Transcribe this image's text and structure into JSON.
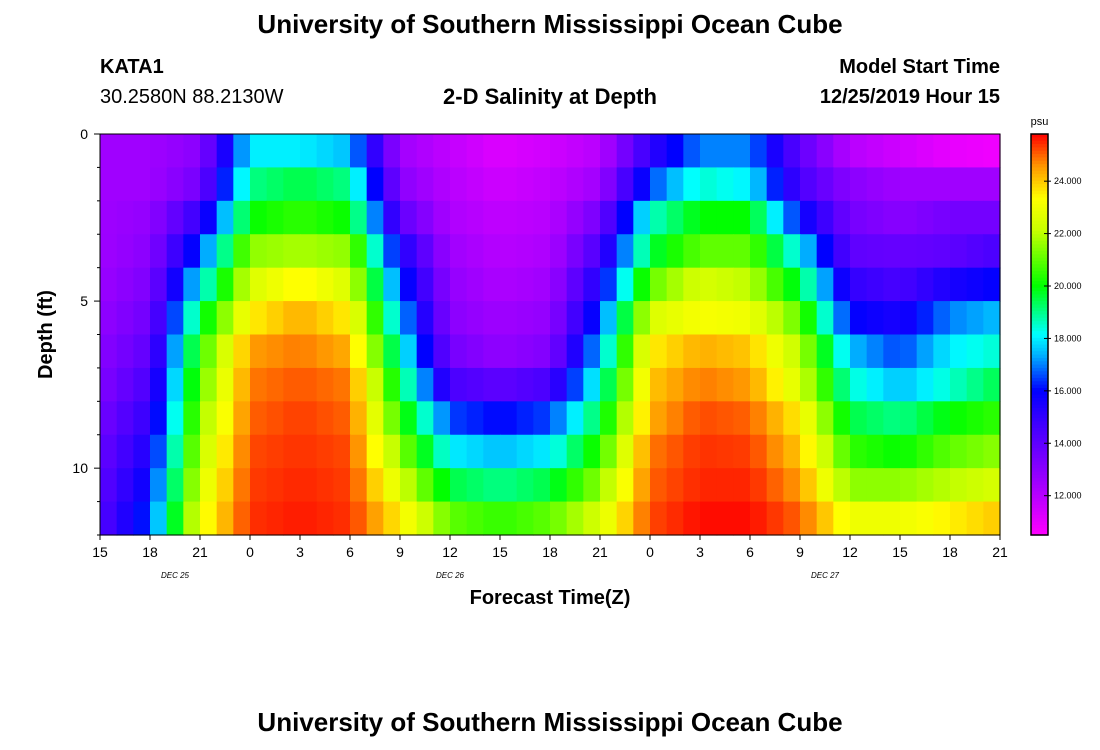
{
  "header": {
    "title": "University of Southern Mississippi Ocean Cube",
    "station": "KATA1",
    "coords": "30.2580N 88.2130W",
    "plot_title": "2-D Salinity at Depth",
    "model_start_label": "Model Start Time",
    "model_start_value": "12/25/2019 Hour 15"
  },
  "footer": {
    "title": "University of Southern Mississippi Ocean Cube"
  },
  "chart_data": {
    "type": "heatmap",
    "title": "2-D Salinity at Depth",
    "xlabel": "Forecast Time(Z)",
    "ylabel": "Depth (ft)",
    "x_ticks": [
      "15",
      "18",
      "21",
      "0",
      "3",
      "6",
      "9",
      "12",
      "15",
      "18",
      "21",
      "0",
      "3",
      "6",
      "9",
      "12",
      "15",
      "18",
      "21"
    ],
    "x_hours": [
      0,
      3,
      6,
      9,
      12,
      15,
      18,
      21,
      24,
      27,
      30,
      33,
      36,
      39,
      42,
      45,
      48,
      51,
      54
    ],
    "date_labels": [
      {
        "text": "DEC 25",
        "hour": 4.5
      },
      {
        "text": "DEC 26",
        "hour": 21
      },
      {
        "text": "DEC 27",
        "hour": 43.5
      }
    ],
    "y_ticks": [
      0,
      5,
      10
    ],
    "ylim": [
      0,
      12
    ],
    "xlim": [
      0,
      54
    ],
    "colorbar": {
      "unit": "psu",
      "min": 10.5,
      "max": 25.8,
      "ticks": [
        "12.000",
        "14.000",
        "16.000",
        "18.000",
        "20.000",
        "22.000",
        "24.000"
      ],
      "tick_values": [
        12,
        14,
        16,
        18,
        20,
        22,
        24
      ]
    },
    "depth_levels": [
      0.5,
      1.5,
      2.5,
      3.5,
      4.5,
      5.5,
      6.5,
      7.5,
      8.5,
      9.5,
      10.5,
      11.5
    ],
    "hours": [
      0,
      3,
      6,
      9,
      12,
      15,
      18,
      21,
      24,
      27,
      30,
      33,
      36,
      39,
      42,
      45,
      48,
      51,
      54
    ],
    "salinity": [
      [
        12.5,
        12.5,
        13.0,
        18.0,
        18.0,
        17.5,
        12.5,
        11.8,
        11.2,
        11.5,
        12.0,
        15.0,
        17.0,
        17.0,
        14.0,
        12.0,
        11.5,
        11.0,
        10.8
      ],
      [
        12.5,
        12.5,
        13.5,
        19.0,
        19.5,
        19.0,
        13.0,
        12.0,
        11.5,
        11.8,
        12.5,
        16.5,
        18.5,
        18.0,
        14.5,
        13.0,
        12.5,
        12.5,
        12.5
      ],
      [
        12.5,
        12.8,
        15.0,
        20.0,
        20.5,
        20.0,
        14.0,
        12.2,
        11.8,
        12.0,
        13.5,
        18.5,
        20.0,
        20.0,
        16.0,
        13.5,
        13.0,
        13.5,
        13.5
      ],
      [
        12.5,
        13.0,
        16.5,
        21.5,
        21.8,
        21.5,
        15.5,
        12.5,
        12.0,
        12.2,
        14.5,
        19.5,
        21.0,
        21.0,
        18.0,
        14.0,
        13.8,
        14.0,
        14.5
      ],
      [
        12.6,
        13.3,
        18.0,
        22.5,
        23.5,
        22.5,
        16.5,
        12.8,
        12.2,
        12.5,
        15.5,
        21.0,
        22.5,
        22.0,
        19.5,
        15.0,
        14.5,
        15.5,
        16.0
      ],
      [
        12.8,
        13.6,
        19.5,
        23.5,
        24.3,
        23.5,
        17.5,
        13.0,
        12.5,
        12.8,
        16.5,
        22.5,
        23.2,
        23.0,
        21.0,
        16.0,
        15.5,
        17.0,
        17.5
      ],
      [
        13.0,
        14.0,
        20.5,
        24.5,
        24.8,
        24.3,
        18.5,
        13.5,
        12.8,
        13.2,
        17.5,
        23.5,
        24.3,
        24.0,
        22.0,
        17.5,
        16.5,
        18.0,
        18.5
      ],
      [
        13.2,
        14.5,
        21.0,
        24.8,
        25.1,
        24.8,
        19.5,
        14.5,
        14.0,
        14.5,
        18.5,
        24.0,
        24.8,
        24.5,
        22.5,
        18.5,
        17.5,
        18.5,
        19.5
      ],
      [
        13.5,
        15.0,
        21.5,
        25.0,
        25.3,
        25.0,
        20.5,
        16.5,
        16.0,
        16.5,
        19.5,
        24.3,
        25.2,
        25.0,
        23.5,
        19.5,
        19.0,
        20.0,
        20.5
      ],
      [
        13.8,
        15.5,
        22.0,
        25.2,
        25.4,
        25.2,
        21.5,
        18.0,
        17.5,
        18.0,
        20.5,
        24.8,
        25.4,
        25.3,
        24.0,
        20.5,
        20.0,
        21.0,
        21.5
      ],
      [
        14.0,
        16.0,
        22.5,
        25.3,
        25.5,
        25.3,
        22.5,
        19.5,
        19.0,
        19.5,
        21.5,
        25.0,
        25.5,
        25.5,
        24.5,
        21.5,
        21.5,
        22.0,
        22.5
      ],
      [
        14.2,
        16.5,
        23.0,
        25.4,
        25.6,
        25.4,
        23.5,
        21.0,
        20.5,
        21.0,
        22.5,
        25.2,
        25.7,
        25.7,
        25.0,
        23.0,
        23.0,
        23.5,
        24.0
      ]
    ]
  }
}
